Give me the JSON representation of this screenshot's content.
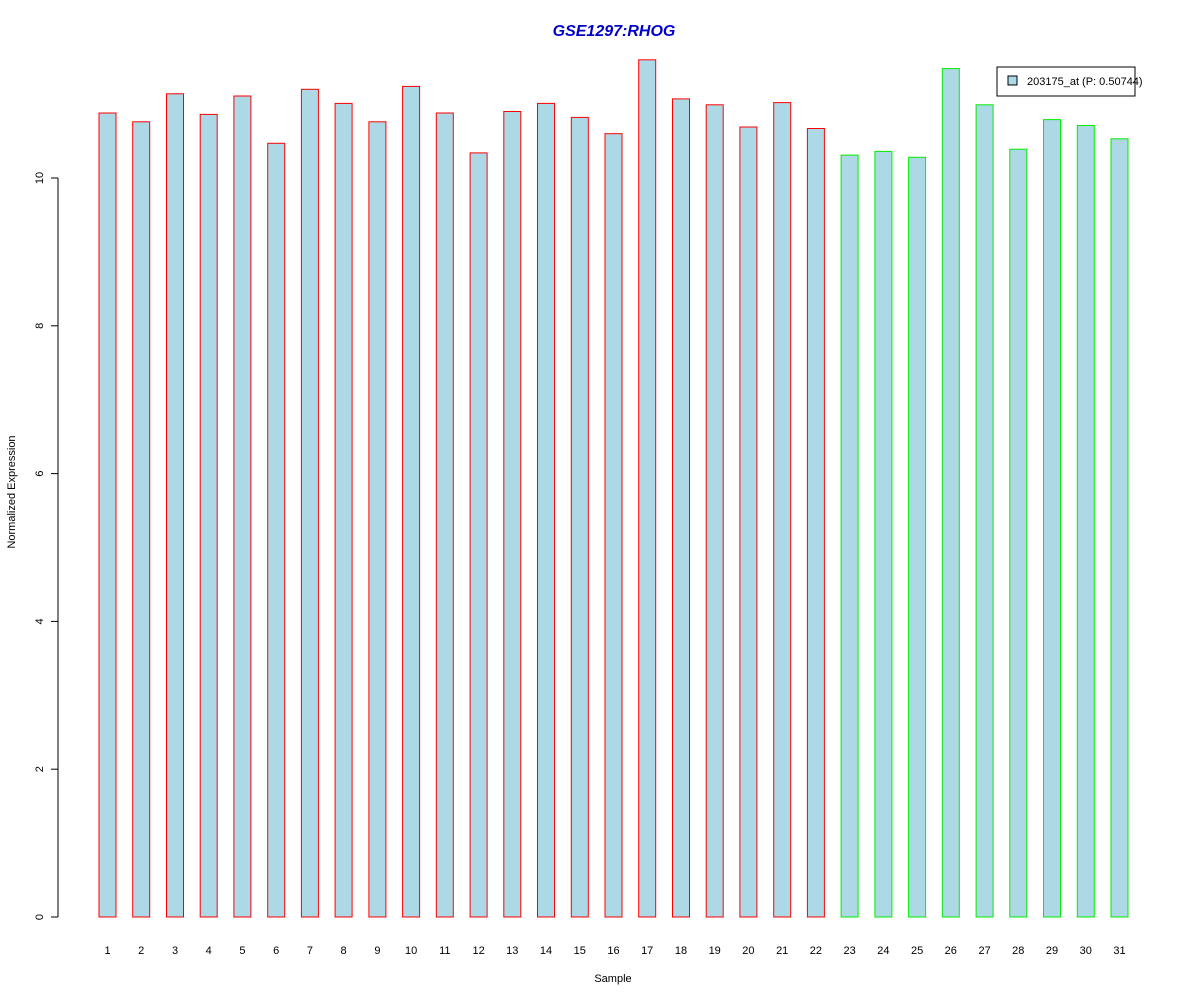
{
  "chart_data": {
    "type": "bar",
    "title": "GSE1297:RHOG",
    "title_color": "#0000cc",
    "xlabel": "Sample",
    "ylabel": "Normalized Expression",
    "categories": [
      "1",
      "2",
      "3",
      "4",
      "5",
      "6",
      "7",
      "8",
      "9",
      "10",
      "11",
      "12",
      "13",
      "14",
      "15",
      "16",
      "17",
      "18",
      "19",
      "20",
      "21",
      "22",
      "23",
      "24",
      "25",
      "26",
      "27",
      "28",
      "29",
      "30",
      "31"
    ],
    "series": [
      {
        "name": "203175_at (P: 0.50744)",
        "values": [
          10.88,
          10.76,
          11.14,
          10.86,
          11.11,
          10.47,
          11.2,
          11.01,
          10.76,
          11.24,
          10.88,
          10.34,
          10.9,
          11.01,
          10.82,
          10.6,
          11.6,
          11.07,
          10.99,
          10.69,
          11.02,
          10.67,
          10.31,
          10.36,
          10.28,
          11.48,
          10.99,
          10.39,
          10.79,
          10.71,
          10.53
        ]
      }
    ],
    "group_sizes": [
      22,
      9
    ],
    "group_border_colors": [
      "#ff0000",
      "#00ee00"
    ],
    "bar_fill": "#add8e6",
    "ylim": [
      0,
      11.7
    ],
    "yticks": [
      0,
      2,
      4,
      6,
      8,
      10
    ],
    "grid": false,
    "legend_position": "top-right"
  }
}
